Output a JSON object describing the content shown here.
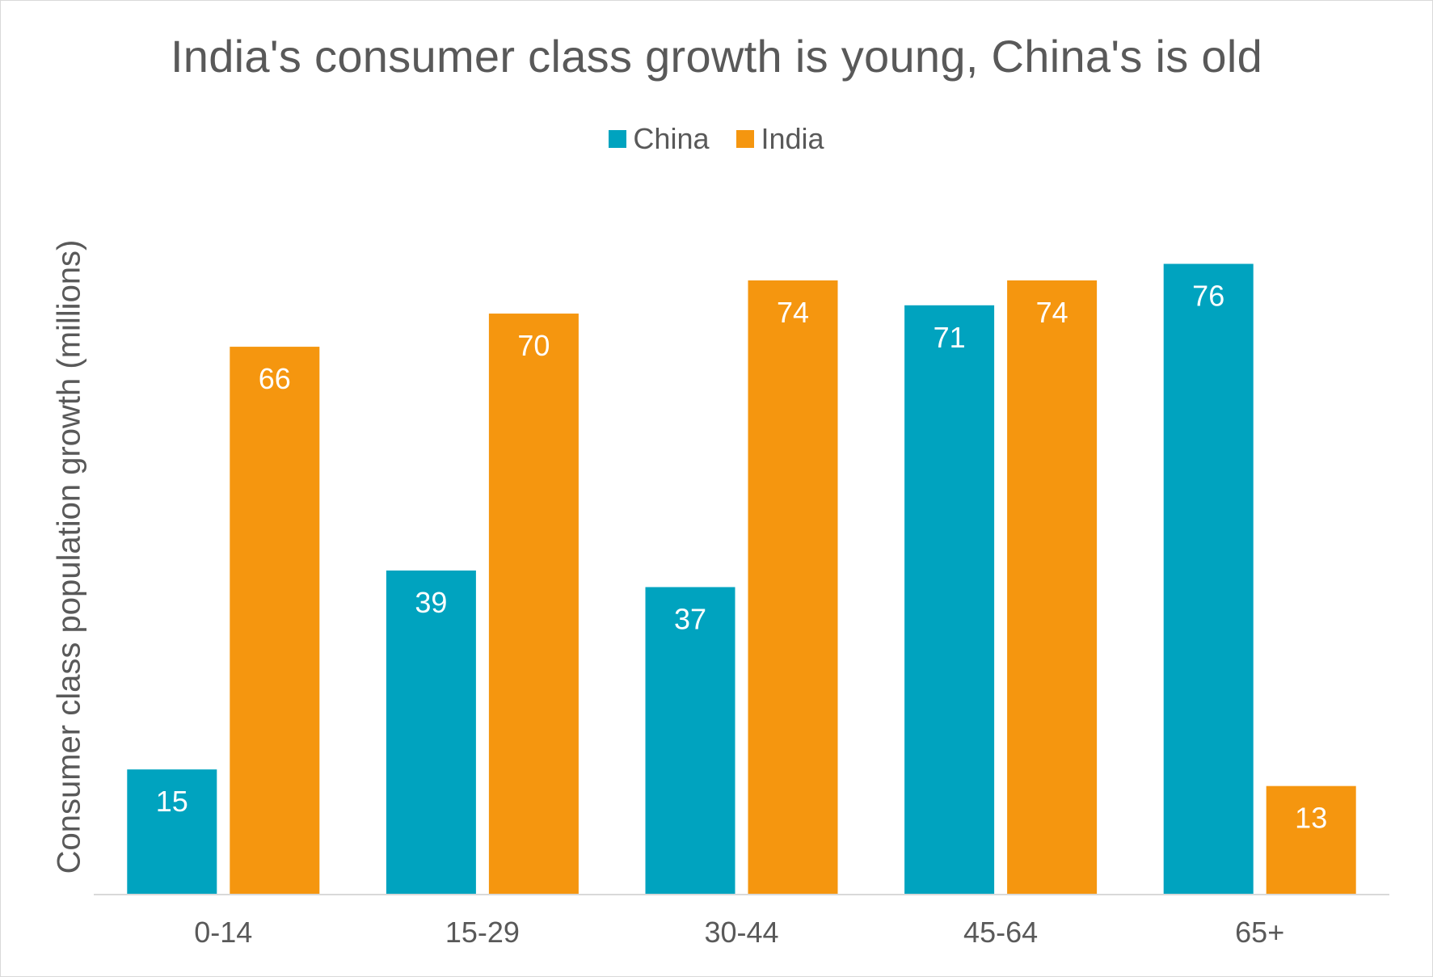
{
  "chart_data": {
    "type": "bar",
    "title": "India's consumer class growth is young, China's is old",
    "xlabel": "",
    "ylabel": "Consumer class population growth (millions)",
    "categories": [
      "0-14",
      "15-29",
      "30-44",
      "45-64",
      "65+"
    ],
    "series": [
      {
        "name": "China",
        "color": "#00A3BF",
        "values": [
          15,
          39,
          37,
          71,
          76
        ]
      },
      {
        "name": "India",
        "color": "#F5960F",
        "values": [
          66,
          70,
          74,
          74,
          13
        ]
      }
    ],
    "ylim": [
      0,
      78
    ],
    "grid": false,
    "data_labels": true,
    "legend_position": "top-center"
  },
  "colors": {
    "text": "#595959",
    "axis": "#d9d9d9",
    "label_on_bar": "#ffffff"
  }
}
